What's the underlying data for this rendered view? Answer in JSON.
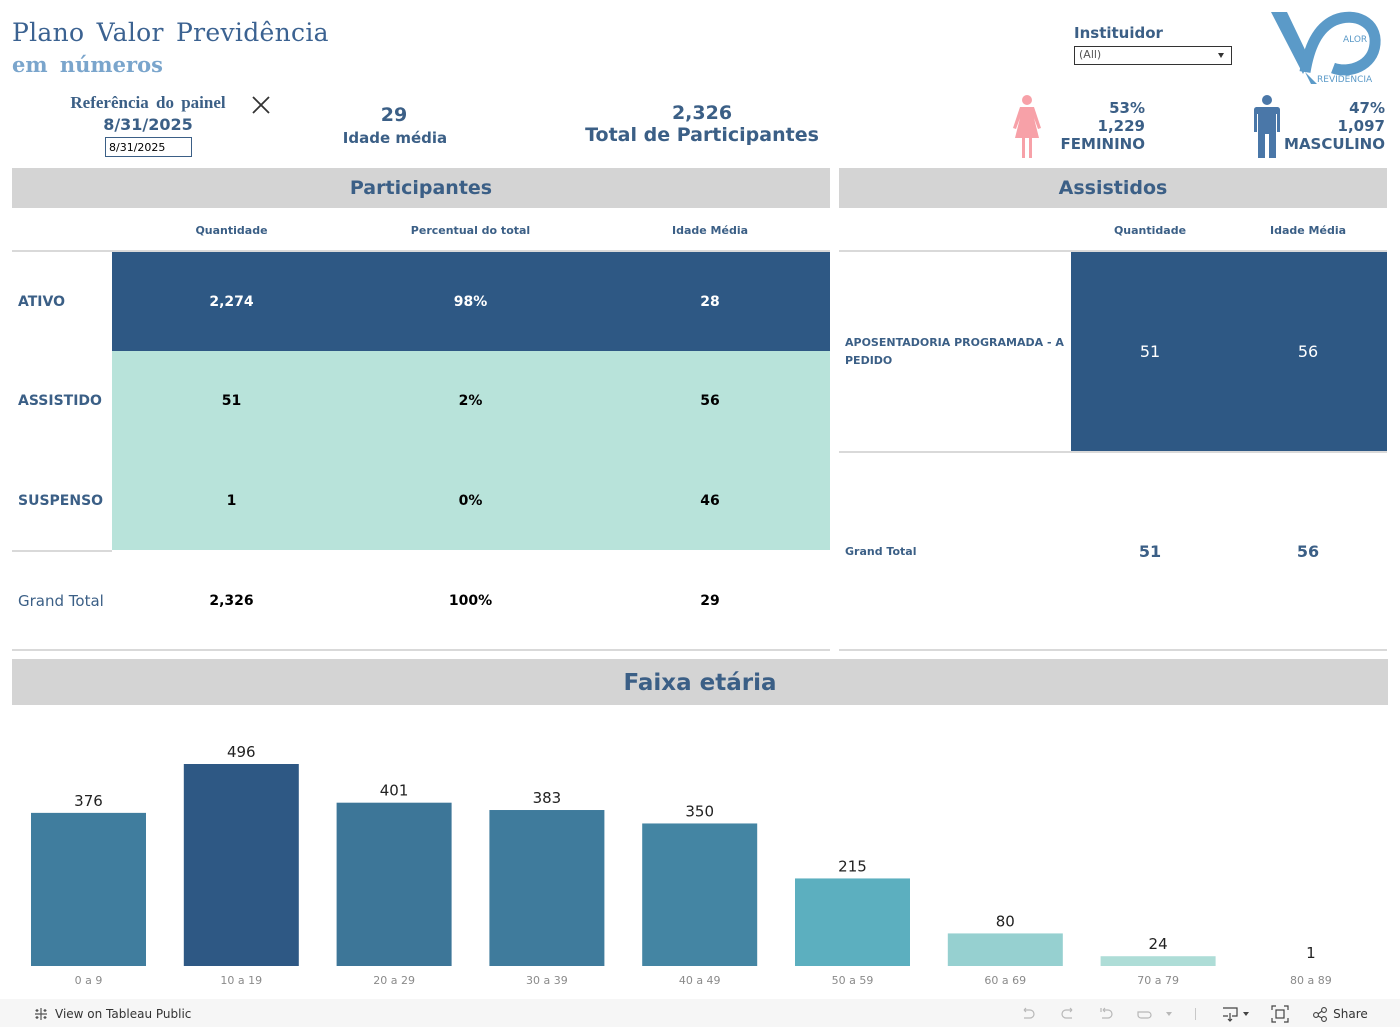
{
  "header": {
    "title_line1": "Plano Valor Previdência",
    "title_line2": "em números",
    "ref_label": "Referência do painel",
    "ref_date": "8/31/2025",
    "ref_input_value": "8/31/2025",
    "close_icon": "close-x-icon"
  },
  "kpis": {
    "idade_media_value": "29",
    "idade_media_label": "Idade média",
    "total_value": "2,326",
    "total_label": "Total de Participantes"
  },
  "filter": {
    "label": "Instituidor",
    "selected": "(All)"
  },
  "logo": {
    "word1": "ALOR",
    "word2": "REVIDÊNCIA",
    "color": "#5b9ac8"
  },
  "gender": {
    "female": {
      "percent": "53%",
      "count": "1,229",
      "label": "FEMININO",
      "color": "#f7a1a8",
      "icon": "female-person-icon"
    },
    "male": {
      "percent": "47%",
      "count": "1,097",
      "label": "MASCULINO",
      "color": "#4a77a8",
      "icon": "male-person-icon"
    }
  },
  "participantes": {
    "title": "Participantes",
    "columns": [
      "Quantidade",
      "Percentual do total",
      "Idade Média"
    ],
    "rows": [
      {
        "label": "ATIVO",
        "values": [
          "2,274",
          "98%",
          "28"
        ],
        "tone": "dark"
      },
      {
        "label": "ASSISTIDO",
        "values": [
          "51",
          "2%",
          "56"
        ],
        "tone": "light"
      },
      {
        "label": "SUSPENSO",
        "values": [
          "1",
          "0%",
          "46"
        ],
        "tone": "light"
      }
    ],
    "total": {
      "label": "Grand Total",
      "values": [
        "2,326",
        "100%",
        "29"
      ]
    }
  },
  "assistidos": {
    "title": "Assistidos",
    "columns": [
      "Quantidade",
      "Idade Média"
    ],
    "rows": [
      {
        "label": "APOSENTADORIA PROGRAMADA - A PEDIDO",
        "values": [
          "51",
          "56"
        ]
      }
    ],
    "total": {
      "label": "Grand Total",
      "values": [
        "51",
        "56"
      ]
    }
  },
  "faixa": {
    "title": "Faixa etária"
  },
  "chart_data": {
    "type": "bar",
    "title": "Faixa etária",
    "xlabel": "",
    "ylabel": "",
    "categories": [
      "0 a 9",
      "10 a 19",
      "20 a 29",
      "30 a 39",
      "40 a 49",
      "50 a 59",
      "60 a 69",
      "70 a 79",
      "80 a 89"
    ],
    "values": [
      376,
      496,
      401,
      383,
      350,
      215,
      80,
      24,
      1
    ],
    "ylim": [
      0,
      496
    ],
    "grid": false,
    "legend": "none",
    "color_scale": {
      "low": "#b8e3da",
      "mid": "#58adbe",
      "high": "#2e5884"
    }
  },
  "footer": {
    "view_link": "View on Tableau Public",
    "share_label": "Share",
    "icons": [
      "undo-icon",
      "redo-icon",
      "revert-icon",
      "refresh-icon",
      "download-icon",
      "fullscreen-icon",
      "share-icon"
    ]
  }
}
